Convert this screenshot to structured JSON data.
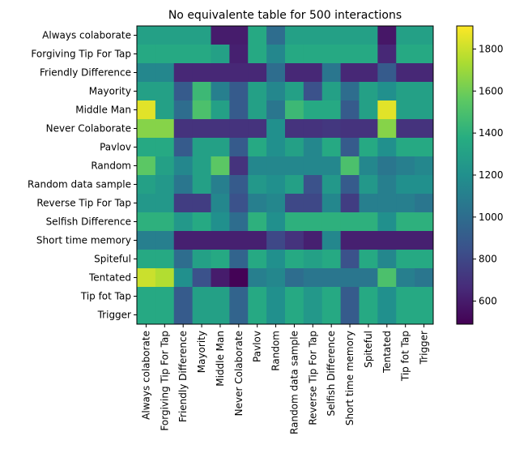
{
  "chart_data": {
    "type": "heatmap",
    "title": "No equivalente table for 500 interactions",
    "xlabel": "",
    "ylabel": "",
    "strategies": [
      "Always colaborate",
      "Forgiving Tip For Tap",
      "Friendly Difference",
      "Mayority",
      "Middle Man",
      "Never Colaborate",
      "Pavlov",
      "Random",
      "Random data sample",
      "Reverse Tip For Tap",
      "Selfish Difference",
      "Short time memory",
      "Spiteful",
      "Tentated",
      "Tip fot Tap",
      "Trigger"
    ],
    "colormap": "viridis",
    "colorbar": {
      "range": [
        490,
        1910
      ],
      "ticks": [
        600,
        800,
        1000,
        1200,
        1400,
        1600,
        1800
      ]
    },
    "values": [
      [
        1300,
        1300,
        1300,
        1300,
        600,
        600,
        1350,
        1000,
        1300,
        1300,
        1300,
        1300,
        1300,
        580,
        1300,
        1300
      ],
      [
        1350,
        1350,
        1350,
        1350,
        1300,
        620,
        1350,
        1150,
        1350,
        1350,
        1350,
        1350,
        1350,
        650,
        1350,
        1350
      ],
      [
        1150,
        1150,
        650,
        650,
        650,
        650,
        650,
        1000,
        650,
        650,
        1050,
        650,
        650,
        900,
        650,
        650
      ],
      [
        1300,
        1300,
        900,
        1450,
        1100,
        900,
        1300,
        1150,
        1300,
        850,
        1300,
        1000,
        1300,
        1200,
        1300,
        1300
      ],
      [
        1850,
        1300,
        1000,
        1500,
        1300,
        900,
        1300,
        1050,
        1450,
        1350,
        1350,
        900,
        1300,
        1850,
        1300,
        1300
      ],
      [
        1650,
        1650,
        700,
        700,
        700,
        700,
        700,
        1200,
        700,
        700,
        720,
        700,
        700,
        1650,
        700,
        700
      ],
      [
        1350,
        1350,
        900,
        1300,
        1300,
        900,
        1350,
        1200,
        1300,
        1150,
        1350,
        900,
        1350,
        1200,
        1350,
        1350
      ],
      [
        1550,
        1300,
        1150,
        1300,
        1550,
        700,
        1150,
        1150,
        1150,
        1150,
        1150,
        1500,
        1150,
        1050,
        1100,
        1150
      ],
      [
        1300,
        1250,
        1050,
        1300,
        1100,
        900,
        1250,
        1200,
        1300,
        850,
        1250,
        900,
        1250,
        1100,
        1200,
        1200
      ],
      [
        1250,
        1250,
        750,
        750,
        1150,
        850,
        1100,
        1150,
        800,
        800,
        1150,
        750,
        1100,
        1100,
        1100,
        1050
      ],
      [
        1400,
        1400,
        1250,
        1350,
        1200,
        1000,
        1400,
        1200,
        1400,
        1400,
        1400,
        1400,
        1400,
        1200,
        1400,
        1400
      ],
      [
        1100,
        1100,
        620,
        620,
        620,
        620,
        620,
        800,
        700,
        620,
        1150,
        620,
        620,
        620,
        620,
        620
      ],
      [
        1350,
        1350,
        1000,
        1300,
        1350,
        950,
        1350,
        1200,
        1350,
        1300,
        1350,
        850,
        1350,
        1150,
        1350,
        1350
      ],
      [
        1800,
        1750,
        1200,
        850,
        600,
        500,
        1100,
        1150,
        1000,
        1050,
        1050,
        1050,
        1050,
        1500,
        1100,
        1050
      ],
      [
        1350,
        1350,
        900,
        1300,
        1300,
        950,
        1350,
        1200,
        1350,
        1250,
        1350,
        900,
        1350,
        1200,
        1350,
        1350
      ],
      [
        1350,
        1350,
        900,
        1300,
        1300,
        950,
        1350,
        1200,
        1350,
        1250,
        1350,
        900,
        1350,
        1200,
        1350,
        1350
      ]
    ]
  }
}
